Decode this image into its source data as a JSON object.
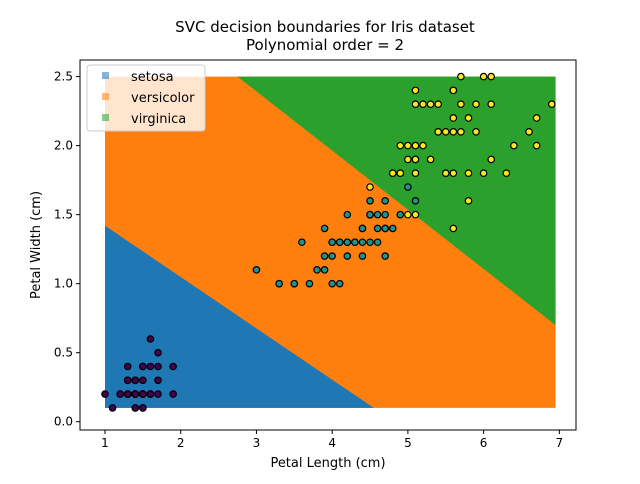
{
  "chart_data": {
    "type": "scatter",
    "title": "SVC decision boundaries for Iris dataset",
    "subtitle": "Polynomial order = 2",
    "xlabel": "Petal Length (cm)",
    "ylabel": "Petal Width (cm)",
    "xlim": [
      0.67,
      7.22
    ],
    "ylim": [
      -0.06,
      2.62
    ],
    "xticks": [
      "1",
      "2",
      "3",
      "4",
      "5",
      "6",
      "7"
    ],
    "yticks": [
      "0.0",
      "0.5",
      "1.0",
      "1.5",
      "2.0",
      "2.5"
    ],
    "grid": false,
    "legend": {
      "placement": "top-left",
      "entries": [
        "setosa",
        "versicolor",
        "virginica"
      ]
    },
    "region_colors": {
      "setosa": "#1f77b4",
      "versicolor": "#ff7f0e",
      "virginica": "#2ca02c"
    },
    "regions": {
      "versicolor": [
        [
          1.0,
          0.1
        ],
        [
          6.95,
          0.1
        ],
        [
          6.95,
          2.5
        ],
        [
          1.0,
          2.5
        ]
      ],
      "setosa": [
        [
          1.0,
          0.1
        ],
        [
          1.0,
          1.42
        ],
        [
          4.55,
          0.1
        ]
      ],
      "virginica": [
        [
          2.75,
          2.5
        ],
        [
          6.95,
          2.5
        ],
        [
          6.95,
          0.7
        ]
      ]
    },
    "point_colors": {
      "setosa": "#440154",
      "versicolor": "#21918c",
      "virginica": "#fde725"
    },
    "series": [
      {
        "class": "setosa",
        "points": [
          [
            1.4,
            0.2
          ],
          [
            1.4,
            0.2
          ],
          [
            1.3,
            0.2
          ],
          [
            1.5,
            0.2
          ],
          [
            1.4,
            0.2
          ],
          [
            1.7,
            0.4
          ],
          [
            1.4,
            0.3
          ],
          [
            1.5,
            0.2
          ],
          [
            1.4,
            0.2
          ],
          [
            1.5,
            0.1
          ],
          [
            1.5,
            0.2
          ],
          [
            1.6,
            0.2
          ],
          [
            1.4,
            0.1
          ],
          [
            1.1,
            0.1
          ],
          [
            1.2,
            0.2
          ],
          [
            1.5,
            0.4
          ],
          [
            1.3,
            0.4
          ],
          [
            1.4,
            0.3
          ],
          [
            1.7,
            0.3
          ],
          [
            1.5,
            0.3
          ],
          [
            1.7,
            0.2
          ],
          [
            1.5,
            0.4
          ],
          [
            1.0,
            0.2
          ],
          [
            1.7,
            0.5
          ],
          [
            1.9,
            0.2
          ],
          [
            1.6,
            0.2
          ],
          [
            1.6,
            0.4
          ],
          [
            1.5,
            0.2
          ],
          [
            1.4,
            0.2
          ],
          [
            1.6,
            0.2
          ],
          [
            1.6,
            0.2
          ],
          [
            1.5,
            0.4
          ],
          [
            1.5,
            0.1
          ],
          [
            1.4,
            0.2
          ],
          [
            1.5,
            0.2
          ],
          [
            1.2,
            0.2
          ],
          [
            1.3,
            0.2
          ],
          [
            1.4,
            0.1
          ],
          [
            1.3,
            0.2
          ],
          [
            1.5,
            0.2
          ],
          [
            1.3,
            0.3
          ],
          [
            1.3,
            0.3
          ],
          [
            1.3,
            0.2
          ],
          [
            1.6,
            0.6
          ],
          [
            1.9,
            0.4
          ],
          [
            1.4,
            0.3
          ],
          [
            1.6,
            0.2
          ],
          [
            1.4,
            0.2
          ],
          [
            1.5,
            0.2
          ],
          [
            1.4,
            0.2
          ]
        ]
      },
      {
        "class": "versicolor",
        "points": [
          [
            4.7,
            1.4
          ],
          [
            4.5,
            1.5
          ],
          [
            4.9,
            1.5
          ],
          [
            4.0,
            1.3
          ],
          [
            4.6,
            1.5
          ],
          [
            4.5,
            1.3
          ],
          [
            4.7,
            1.6
          ],
          [
            3.3,
            1.0
          ],
          [
            4.6,
            1.3
          ],
          [
            3.9,
            1.4
          ],
          [
            3.5,
            1.0
          ],
          [
            4.2,
            1.5
          ],
          [
            4.0,
            1.0
          ],
          [
            4.7,
            1.4
          ],
          [
            3.6,
            1.3
          ],
          [
            4.4,
            1.4
          ],
          [
            4.5,
            1.5
          ],
          [
            4.1,
            1.0
          ],
          [
            4.5,
            1.5
          ],
          [
            3.9,
            1.1
          ],
          [
            4.8,
            1.8
          ],
          [
            4.0,
            1.3
          ],
          [
            4.9,
            1.5
          ],
          [
            4.7,
            1.2
          ],
          [
            4.3,
            1.3
          ],
          [
            4.4,
            1.4
          ],
          [
            4.8,
            1.4
          ],
          [
            5.0,
            1.7
          ],
          [
            4.5,
            1.5
          ],
          [
            3.5,
            1.0
          ],
          [
            3.8,
            1.1
          ],
          [
            3.7,
            1.0
          ],
          [
            3.9,
            1.2
          ],
          [
            5.1,
            1.6
          ],
          [
            4.5,
            1.5
          ],
          [
            4.5,
            1.6
          ],
          [
            4.7,
            1.5
          ],
          [
            4.4,
            1.3
          ],
          [
            4.1,
            1.3
          ],
          [
            4.0,
            1.3
          ],
          [
            4.4,
            1.2
          ],
          [
            4.6,
            1.4
          ],
          [
            4.0,
            1.2
          ],
          [
            3.3,
            1.0
          ],
          [
            4.2,
            1.3
          ],
          [
            4.2,
            1.2
          ],
          [
            4.2,
            1.3
          ],
          [
            4.3,
            1.3
          ],
          [
            3.0,
            1.1
          ],
          [
            4.1,
            1.3
          ]
        ]
      },
      {
        "class": "virginica",
        "points": [
          [
            6.0,
            2.5
          ],
          [
            5.1,
            1.9
          ],
          [
            5.9,
            2.1
          ],
          [
            5.6,
            1.8
          ],
          [
            5.8,
            2.2
          ],
          [
            6.6,
            2.1
          ],
          [
            4.5,
            1.7
          ],
          [
            6.3,
            1.8
          ],
          [
            5.8,
            1.8
          ],
          [
            6.1,
            2.5
          ],
          [
            5.1,
            2.0
          ],
          [
            5.3,
            1.9
          ],
          [
            5.5,
            2.1
          ],
          [
            5.0,
            2.0
          ],
          [
            5.1,
            2.4
          ],
          [
            5.3,
            2.3
          ],
          [
            5.5,
            1.8
          ],
          [
            6.7,
            2.2
          ],
          [
            6.9,
            2.3
          ],
          [
            5.0,
            1.5
          ],
          [
            5.7,
            2.3
          ],
          [
            4.9,
            2.0
          ],
          [
            6.7,
            2.0
          ],
          [
            4.9,
            1.8
          ],
          [
            5.7,
            2.1
          ],
          [
            6.0,
            1.8
          ],
          [
            4.8,
            1.8
          ],
          [
            4.9,
            1.8
          ],
          [
            5.6,
            2.1
          ],
          [
            5.8,
            1.6
          ],
          [
            6.1,
            1.9
          ],
          [
            6.4,
            2.0
          ],
          [
            5.6,
            2.2
          ],
          [
            5.1,
            1.5
          ],
          [
            5.6,
            1.4
          ],
          [
            6.1,
            2.3
          ],
          [
            5.6,
            2.4
          ],
          [
            5.5,
            1.8
          ],
          [
            4.8,
            1.8
          ],
          [
            5.4,
            2.1
          ],
          [
            5.6,
            2.4
          ],
          [
            5.1,
            2.3
          ],
          [
            5.1,
            1.9
          ],
          [
            5.9,
            2.3
          ],
          [
            5.7,
            2.5
          ],
          [
            5.2,
            2.3
          ],
          [
            5.0,
            1.9
          ],
          [
            5.2,
            2.0
          ],
          [
            5.4,
            2.3
          ],
          [
            5.1,
            1.8
          ]
        ]
      }
    ]
  }
}
